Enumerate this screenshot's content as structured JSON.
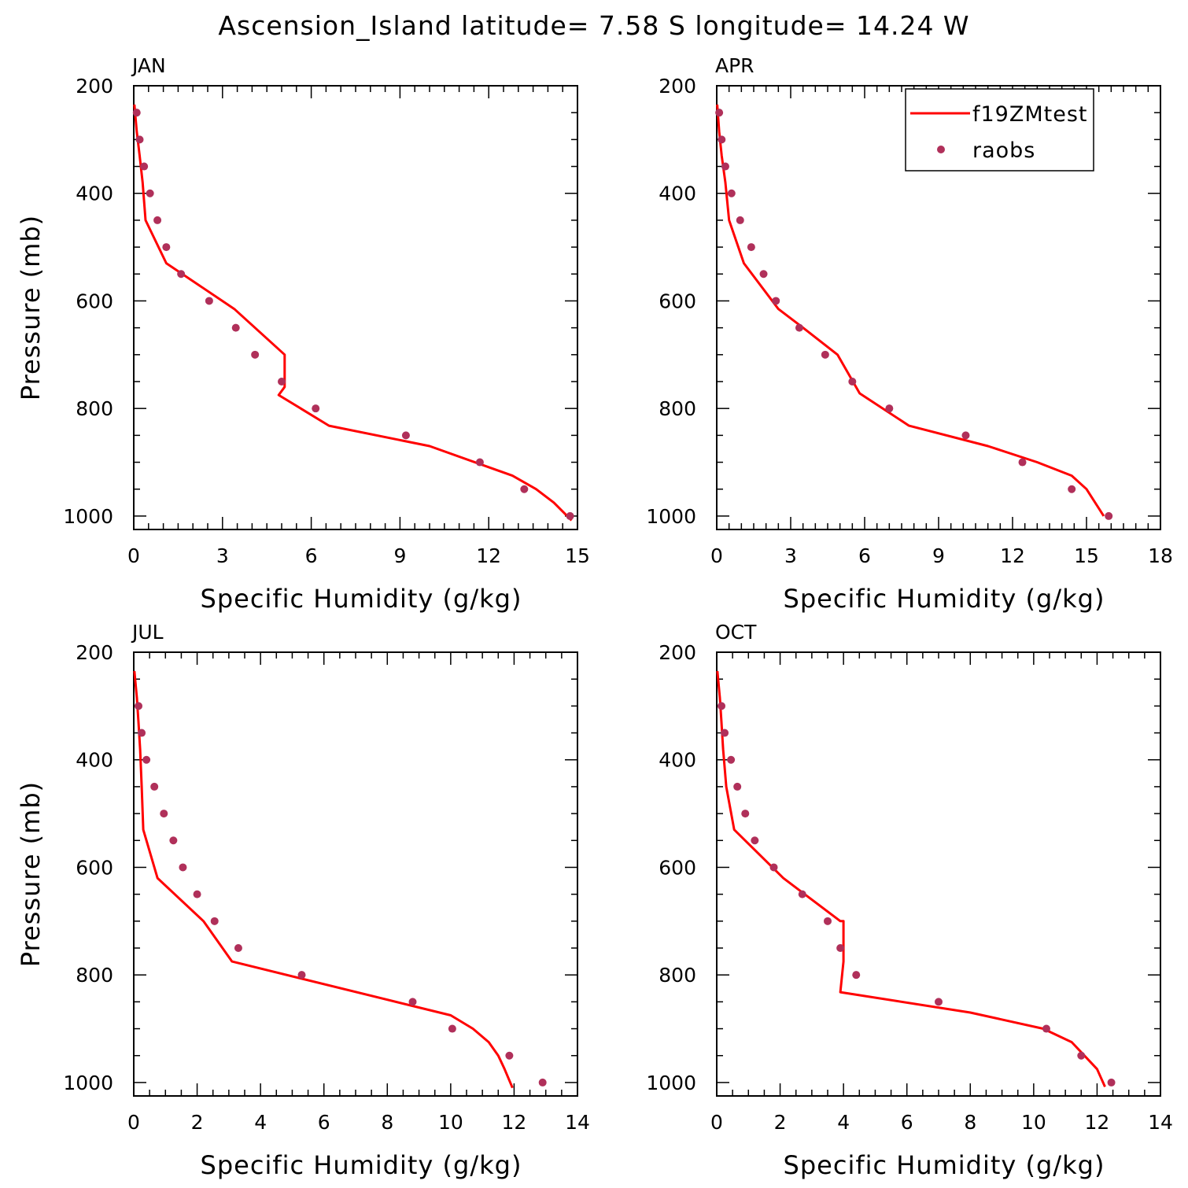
{
  "figure": {
    "title": "Ascension_Island  latitude= 7.58 S longitude= 14.24 W"
  },
  "colors": {
    "model_line": "#ff0000",
    "obs_marker": "#b0305a",
    "axes": "#000000"
  },
  "legend": {
    "placement": "top-right of APR panel",
    "entries": [
      {
        "label": "f19ZMtest",
        "style": "line"
      },
      {
        "label": "raobs",
        "style": "marker"
      }
    ]
  },
  "chart_data": [
    {
      "type": "line",
      "panel": "JAN",
      "title": "JAN",
      "xlabel": "Specific Humidity (g/kg)",
      "ylabel": "Pressure (mb)",
      "xlim": [
        0,
        15
      ],
      "ylim": [
        1025,
        200
      ],
      "y_inverted": true,
      "xticks": [
        0,
        3,
        6,
        9,
        12,
        15
      ],
      "yticks": [
        200,
        400,
        600,
        800,
        1000
      ],
      "x_minor_step": 0.5,
      "y_minor_step": 50,
      "series": [
        {
          "name": "f19ZMtest",
          "kind": "line",
          "x": [
            0.02,
            0.1,
            0.2,
            0.3,
            0.4,
            1.1,
            3.4,
            5.1,
            5.1,
            4.9,
            6.6,
            10.0,
            12.8,
            13.6,
            14.2,
            14.8
          ],
          "y": [
            235,
            285,
            330,
            380,
            450,
            530,
            615,
            700,
            760,
            775,
            832,
            870,
            925,
            950,
            975,
            1008
          ]
        },
        {
          "name": "raobs",
          "kind": "scatter",
          "x": [
            0.1,
            0.2,
            0.35,
            0.55,
            0.8,
            1.1,
            1.6,
            2.55,
            3.45,
            4.1,
            5.0,
            6.15,
            9.2,
            11.7,
            13.2,
            14.75
          ],
          "y": [
            250,
            300,
            350,
            400,
            450,
            500,
            550,
            600,
            650,
            700,
            750,
            800,
            850,
            900,
            950,
            1000
          ]
        }
      ]
    },
    {
      "type": "line",
      "panel": "APR",
      "title": "APR",
      "xlabel": "Specific Humidity (g/kg)",
      "ylabel": "",
      "xlim": [
        0,
        18
      ],
      "ylim": [
        1025,
        200
      ],
      "y_inverted": true,
      "xticks": [
        0,
        3,
        6,
        9,
        12,
        15,
        18
      ],
      "yticks": [
        200,
        400,
        600,
        800,
        1000
      ],
      "x_minor_step": 0.5,
      "y_minor_step": 50,
      "series": [
        {
          "name": "f19ZMtest",
          "kind": "line",
          "x": [
            0.02,
            0.1,
            0.2,
            0.35,
            0.5,
            1.1,
            2.5,
            3.5,
            4.9,
            5.8,
            7.8,
            11.0,
            13.0,
            14.4,
            15.0,
            15.7
          ],
          "y": [
            235,
            285,
            330,
            380,
            450,
            530,
            615,
            650,
            700,
            772,
            832,
            870,
            900,
            925,
            950,
            1000
          ]
        },
        {
          "name": "raobs",
          "kind": "scatter",
          "x": [
            0.1,
            0.2,
            0.35,
            0.6,
            0.95,
            1.4,
            1.9,
            2.4,
            3.35,
            4.4,
            5.5,
            7.0,
            10.1,
            12.4,
            14.4,
            15.9
          ],
          "y": [
            250,
            300,
            350,
            400,
            450,
            500,
            550,
            600,
            650,
            700,
            750,
            800,
            850,
            900,
            950,
            1000
          ]
        }
      ]
    },
    {
      "type": "line",
      "panel": "JUL",
      "title": "JUL",
      "xlabel": "Specific Humidity (g/kg)",
      "ylabel": "Pressure (mb)",
      "xlim": [
        0,
        14
      ],
      "ylim": [
        1025,
        200
      ],
      "y_inverted": true,
      "xticks": [
        0,
        2,
        4,
        6,
        8,
        10,
        12,
        14
      ],
      "yticks": [
        200,
        400,
        600,
        800,
        1000
      ],
      "x_minor_step": 0.5,
      "y_minor_step": 50,
      "series": [
        {
          "name": "f19ZMtest",
          "kind": "line",
          "x": [
            0.02,
            0.1,
            0.15,
            0.2,
            0.25,
            0.3,
            0.75,
            2.2,
            3.1,
            10.0,
            10.7,
            11.2,
            11.5,
            11.7,
            11.95
          ],
          "y": [
            235,
            285,
            330,
            380,
            450,
            530,
            620,
            700,
            775,
            875,
            900,
            925,
            950,
            975,
            1010
          ]
        },
        {
          "name": "raobs",
          "kind": "scatter",
          "x": [
            0.15,
            0.25,
            0.4,
            0.65,
            0.95,
            1.25,
            1.55,
            2.0,
            2.55,
            3.3,
            5.3,
            8.8,
            10.05,
            11.85,
            12.9
          ],
          "y": [
            300,
            350,
            400,
            450,
            500,
            550,
            600,
            650,
            700,
            750,
            800,
            850,
            900,
            950,
            1000
          ]
        }
      ]
    },
    {
      "type": "line",
      "panel": "OCT",
      "title": "OCT",
      "xlabel": "Specific Humidity (g/kg)",
      "ylabel": "",
      "xlim": [
        0,
        14
      ],
      "ylim": [
        1025,
        200
      ],
      "y_inverted": true,
      "xticks": [
        0,
        2,
        4,
        6,
        8,
        10,
        12,
        14
      ],
      "yticks": [
        200,
        400,
        600,
        800,
        1000
      ],
      "x_minor_step": 0.5,
      "y_minor_step": 50,
      "series": [
        {
          "name": "f19ZMtest",
          "kind": "line",
          "x": [
            0.02,
            0.1,
            0.15,
            0.2,
            0.3,
            0.55,
            2.1,
            3.9,
            4.0,
            4.0,
            3.9,
            8.0,
            10.3,
            11.2,
            11.6,
            12.0,
            12.25
          ],
          "y": [
            235,
            285,
            330,
            380,
            450,
            530,
            620,
            700,
            700,
            775,
            832,
            870,
            900,
            925,
            950,
            975,
            1008
          ]
        },
        {
          "name": "raobs",
          "kind": "scatter",
          "x": [
            0.15,
            0.25,
            0.45,
            0.65,
            0.9,
            1.2,
            1.8,
            2.7,
            3.5,
            3.9,
            4.4,
            7.0,
            10.4,
            11.5,
            12.45
          ],
          "y": [
            300,
            350,
            400,
            450,
            500,
            550,
            600,
            650,
            700,
            750,
            800,
            850,
            900,
            950,
            1000
          ]
        }
      ]
    }
  ]
}
